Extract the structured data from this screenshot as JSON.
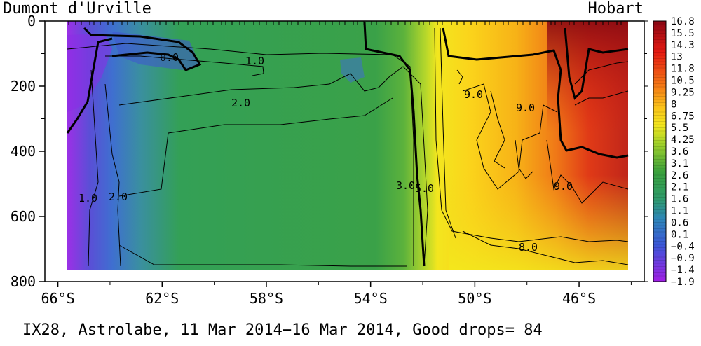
{
  "chart_data": {
    "type": "heatmap",
    "title": "IX28, Astrolabe, 11 Mar 2014−16 Mar 2014, Good drops= 84",
    "left_label": "Dumont d'Urville",
    "right_label": "Hobart",
    "x_ticks": [
      "66°S",
      "62°S",
      "58°S",
      "54°S",
      "50°S",
      "46°S"
    ],
    "x_tick_values": [
      -66,
      -62,
      -58,
      -54,
      -50,
      -46
    ],
    "y_ticks": [
      "0",
      "200",
      "400",
      "600",
      "800"
    ],
    "y_tick_values": [
      0,
      200,
      400,
      600,
      800
    ],
    "xlim": [
      -66.5,
      -43.5
    ],
    "ylim": [
      800,
      0
    ],
    "colorbar_labels": [
      "16.8",
      "15.5",
      "14.3",
      "13",
      "11.8",
      "10.5",
      "9.25",
      "8",
      "6.75",
      "5.5",
      "4.25",
      "3.6",
      "3.1",
      "2.6",
      "2.1",
      "1.6",
      "1.1",
      "0.6",
      "0.1",
      "−0.4",
      "−0.9",
      "−1.4",
      "−1.9"
    ],
    "contour_labels": [
      "0.0",
      "1.0",
      "2.0",
      "1.0",
      "2.0",
      "3.0",
      "5.0",
      "9.0",
      "9.0",
      "9.0",
      "8.0"
    ],
    "colors": {
      "cold": "#8a1ee0",
      "mid": "#2e9c48",
      "warm_yellow": "#f5e81c",
      "hot": "#9b0a12"
    }
  }
}
